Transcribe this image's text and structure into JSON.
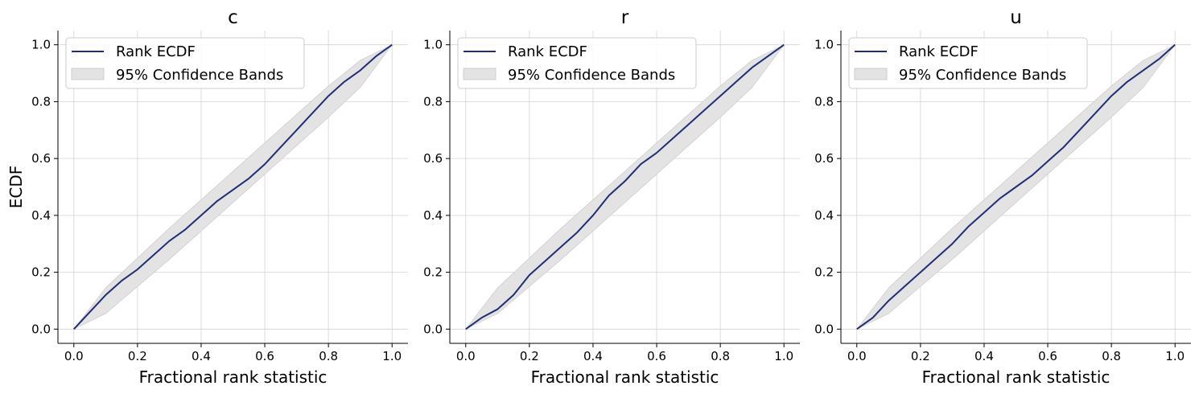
{
  "figure": {
    "ylabel": "ECDF"
  },
  "legend": {
    "line_label": "Rank ECDF",
    "band_label": "95% Confidence Bands"
  },
  "colors": {
    "line": "#1f2e75",
    "band_fill": "#e3e3e3",
    "band_edge": "#cfcfcf",
    "grid": "#d4d4d4",
    "axis": "#000000"
  },
  "chart_data": [
    {
      "type": "line",
      "title": "c",
      "xlabel": "Fractional rank statistic",
      "ylabel": "ECDF",
      "xlim": [
        -0.05,
        1.05
      ],
      "ylim": [
        -0.05,
        1.05
      ],
      "xticks": [
        "0.0",
        "0.2",
        "0.4",
        "0.6",
        "0.8",
        "1.0"
      ],
      "yticks": [
        "0.0",
        "0.2",
        "0.4",
        "0.6",
        "0.8",
        "1.0"
      ],
      "grid": true,
      "legend_position": "upper-left",
      "series": [
        {
          "name": "Rank ECDF",
          "x": [
            0.0,
            0.05,
            0.1,
            0.15,
            0.2,
            0.25,
            0.3,
            0.35,
            0.4,
            0.45,
            0.5,
            0.55,
            0.6,
            0.65,
            0.7,
            0.75,
            0.8,
            0.85,
            0.9,
            0.95,
            1.0
          ],
          "y": [
            0.0,
            0.06,
            0.12,
            0.17,
            0.21,
            0.26,
            0.31,
            0.35,
            0.4,
            0.45,
            0.49,
            0.53,
            0.58,
            0.64,
            0.7,
            0.76,
            0.82,
            0.87,
            0.91,
            0.96,
            1.0
          ]
        },
        {
          "name": "95% Confidence Bands",
          "x": [
            0.0,
            0.1,
            0.2,
            0.3,
            0.4,
            0.5,
            0.6,
            0.7,
            0.8,
            0.9,
            1.0
          ],
          "lower": [
            0.0,
            0.055,
            0.15,
            0.245,
            0.345,
            0.445,
            0.545,
            0.645,
            0.745,
            0.85,
            1.0
          ],
          "upper": [
            0.0,
            0.145,
            0.25,
            0.355,
            0.455,
            0.555,
            0.655,
            0.755,
            0.855,
            0.945,
            1.0
          ]
        }
      ]
    },
    {
      "type": "line",
      "title": "r",
      "xlabel": "Fractional rank statistic",
      "ylabel": "",
      "xlim": [
        -0.05,
        1.05
      ],
      "ylim": [
        -0.05,
        1.05
      ],
      "xticks": [
        "0.0",
        "0.2",
        "0.4",
        "0.6",
        "0.8",
        "1.0"
      ],
      "yticks": [
        "0.0",
        "0.2",
        "0.4",
        "0.6",
        "0.8",
        "1.0"
      ],
      "grid": true,
      "legend_position": "upper-left",
      "series": [
        {
          "name": "Rank ECDF",
          "x": [
            0.0,
            0.05,
            0.1,
            0.15,
            0.2,
            0.25,
            0.3,
            0.35,
            0.4,
            0.45,
            0.5,
            0.55,
            0.6,
            0.65,
            0.7,
            0.75,
            0.8,
            0.85,
            0.9,
            0.95,
            1.0
          ],
          "y": [
            0.0,
            0.04,
            0.07,
            0.12,
            0.19,
            0.24,
            0.29,
            0.34,
            0.4,
            0.47,
            0.52,
            0.58,
            0.62,
            0.67,
            0.72,
            0.77,
            0.82,
            0.87,
            0.92,
            0.96,
            1.0
          ]
        },
        {
          "name": "95% Confidence Bands",
          "x": [
            0.0,
            0.1,
            0.2,
            0.3,
            0.4,
            0.5,
            0.6,
            0.7,
            0.8,
            0.9,
            1.0
          ],
          "lower": [
            0.0,
            0.055,
            0.15,
            0.245,
            0.345,
            0.445,
            0.545,
            0.645,
            0.745,
            0.85,
            1.0
          ],
          "upper": [
            0.0,
            0.145,
            0.25,
            0.355,
            0.455,
            0.555,
            0.655,
            0.755,
            0.855,
            0.945,
            1.0
          ]
        }
      ]
    },
    {
      "type": "line",
      "title": "u",
      "xlabel": "Fractional rank statistic",
      "ylabel": "",
      "xlim": [
        -0.05,
        1.05
      ],
      "ylim": [
        -0.05,
        1.05
      ],
      "xticks": [
        "0.0",
        "0.2",
        "0.4",
        "0.6",
        "0.8",
        "1.0"
      ],
      "yticks": [
        "0.0",
        "0.2",
        "0.4",
        "0.6",
        "0.8",
        "1.0"
      ],
      "grid": true,
      "legend_position": "upper-left",
      "series": [
        {
          "name": "Rank ECDF",
          "x": [
            0.0,
            0.05,
            0.1,
            0.15,
            0.2,
            0.25,
            0.3,
            0.35,
            0.4,
            0.45,
            0.5,
            0.55,
            0.6,
            0.65,
            0.7,
            0.75,
            0.8,
            0.85,
            0.9,
            0.95,
            1.0
          ],
          "y": [
            0.0,
            0.04,
            0.1,
            0.15,
            0.2,
            0.25,
            0.3,
            0.36,
            0.41,
            0.46,
            0.5,
            0.54,
            0.59,
            0.64,
            0.7,
            0.76,
            0.82,
            0.87,
            0.91,
            0.95,
            1.0
          ]
        },
        {
          "name": "95% Confidence Bands",
          "x": [
            0.0,
            0.1,
            0.2,
            0.3,
            0.4,
            0.5,
            0.6,
            0.7,
            0.8,
            0.9,
            1.0
          ],
          "lower": [
            0.0,
            0.055,
            0.15,
            0.245,
            0.345,
            0.445,
            0.545,
            0.645,
            0.745,
            0.85,
            1.0
          ],
          "upper": [
            0.0,
            0.145,
            0.25,
            0.355,
            0.455,
            0.555,
            0.655,
            0.755,
            0.855,
            0.945,
            1.0
          ]
        }
      ]
    }
  ]
}
